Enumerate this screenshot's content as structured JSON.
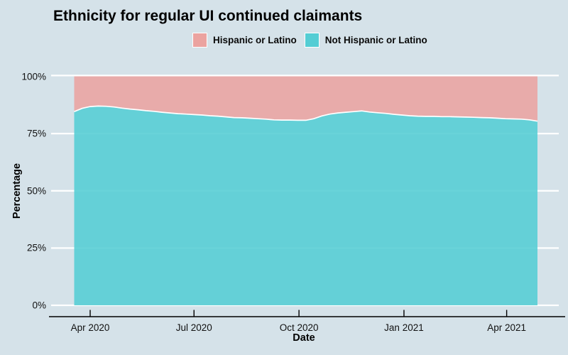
{
  "title": "Ethnicity for regular UI continued claimants",
  "legend": [
    {
      "label": "Hispanic or Latino",
      "color": "#eba3a0"
    },
    {
      "label": "Not Hispanic or Latino",
      "color": "#54cdd4"
    }
  ],
  "colors": {
    "background": "#d5e2e9",
    "gridline": "#ffffff",
    "boundary_line": "#ffffff",
    "axis_line": "#000000",
    "text": "#000000",
    "hispanic": "#eba3a0",
    "not_hispanic": "#54cdd4"
  },
  "x_axis": {
    "label": "Date",
    "ticks": [
      {
        "label": "Apr 2020",
        "date": "2020-04-01"
      },
      {
        "label": "Jul 2020",
        "date": "2020-07-01"
      },
      {
        "label": "Oct 2020",
        "date": "2020-10-01"
      },
      {
        "label": "Jan 2021",
        "date": "2021-01-01"
      },
      {
        "label": "Apr 2021",
        "date": "2021-04-01"
      }
    ]
  },
  "y_axis": {
    "label": "Percentage",
    "ticks": [
      {
        "label": "0%",
        "value": 0
      },
      {
        "label": "25%",
        "value": 25
      },
      {
        "label": "50%",
        "value": 50
      },
      {
        "label": "75%",
        "value": 75
      },
      {
        "label": "100%",
        "value": 100
      }
    ]
  },
  "chart_data": {
    "type": "area",
    "stacked": true,
    "title": "Ethnicity for regular UI continued claimants",
    "xlabel": "Date",
    "ylabel": "Percentage",
    "ylim": [
      0,
      100
    ],
    "legend_position": "top-center",
    "grid": "horizontal-white",
    "x": [
      "2020-03-18",
      "2020-03-25",
      "2020-04-01",
      "2020-04-08",
      "2020-04-15",
      "2020-04-22",
      "2020-04-29",
      "2020-05-06",
      "2020-05-13",
      "2020-05-20",
      "2020-05-27",
      "2020-06-03",
      "2020-06-10",
      "2020-06-17",
      "2020-06-24",
      "2020-07-01",
      "2020-07-08",
      "2020-07-15",
      "2020-07-22",
      "2020-07-29",
      "2020-08-05",
      "2020-08-12",
      "2020-08-19",
      "2020-08-26",
      "2020-09-02",
      "2020-09-09",
      "2020-09-16",
      "2020-09-23",
      "2020-09-30",
      "2020-10-07",
      "2020-10-14",
      "2020-10-21",
      "2020-10-28",
      "2020-11-04",
      "2020-11-11",
      "2020-11-18",
      "2020-11-25",
      "2020-12-02",
      "2020-12-09",
      "2020-12-16",
      "2020-12-23",
      "2020-12-30",
      "2021-01-06",
      "2021-01-13",
      "2021-01-20",
      "2021-01-27",
      "2021-02-03",
      "2021-02-10",
      "2021-02-17",
      "2021-02-24",
      "2021-03-03",
      "2021-03-10",
      "2021-03-17",
      "2021-03-24",
      "2021-03-31",
      "2021-04-07",
      "2021-04-14",
      "2021-04-21",
      "2021-04-28"
    ],
    "series": [
      {
        "name": "Not Hispanic or Latino",
        "color": "#54cdd4",
        "values": [
          84.6,
          86.0,
          86.8,
          87.0,
          86.9,
          86.6,
          86.1,
          85.7,
          85.4,
          85.0,
          84.7,
          84.3,
          84.0,
          83.7,
          83.5,
          83.3,
          83.1,
          82.8,
          82.6,
          82.3,
          82.0,
          81.9,
          81.7,
          81.5,
          81.3,
          81.0,
          80.9,
          80.9,
          80.8,
          80.8,
          81.5,
          82.7,
          83.5,
          84.0,
          84.3,
          84.6,
          84.9,
          84.4,
          84.1,
          83.8,
          83.4,
          83.1,
          82.8,
          82.6,
          82.5,
          82.5,
          82.4,
          82.4,
          82.3,
          82.2,
          82.1,
          82.0,
          81.9,
          81.7,
          81.5,
          81.4,
          81.3,
          81.0,
          80.4
        ]
      },
      {
        "name": "Hispanic or Latino",
        "color": "#eba3a0",
        "values": [
          15.4,
          14.0,
          13.2,
          13.0,
          13.1,
          13.4,
          13.9,
          14.3,
          14.6,
          15.0,
          15.3,
          15.7,
          16.0,
          16.3,
          16.5,
          16.7,
          16.9,
          17.2,
          17.4,
          17.7,
          18.0,
          18.1,
          18.3,
          18.5,
          18.7,
          19.0,
          19.1,
          19.1,
          19.2,
          19.2,
          18.5,
          17.3,
          16.5,
          16.0,
          15.7,
          15.4,
          15.1,
          15.6,
          15.9,
          16.2,
          16.6,
          16.9,
          17.2,
          17.4,
          17.5,
          17.5,
          17.6,
          17.6,
          17.7,
          17.8,
          17.9,
          18.0,
          18.1,
          18.3,
          18.5,
          18.6,
          18.7,
          19.0,
          19.6
        ]
      }
    ]
  }
}
